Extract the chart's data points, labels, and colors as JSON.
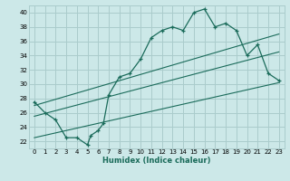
{
  "title": "",
  "xlabel": "Humidex (Indice chaleur)",
  "bg_color": "#cce8e8",
  "grid_color": "#aacccc",
  "line_color": "#1a6b5a",
  "xlim": [
    -0.5,
    23.5
  ],
  "ylim": [
    21.0,
    41.0
  ],
  "yticks": [
    22,
    24,
    26,
    28,
    30,
    32,
    34,
    36,
    38,
    40
  ],
  "xticks": [
    0,
    1,
    2,
    3,
    4,
    5,
    6,
    7,
    8,
    9,
    10,
    11,
    12,
    13,
    14,
    15,
    16,
    17,
    18,
    19,
    20,
    21,
    22,
    23
  ],
  "data_x": [
    0,
    1,
    2,
    3,
    4,
    5,
    5.3,
    6,
    6.5,
    7,
    8,
    9,
    10,
    11,
    12,
    13,
    14,
    15,
    16,
    17,
    18,
    19,
    20,
    21,
    22,
    23
  ],
  "data_y": [
    27.5,
    26.0,
    25.0,
    22.5,
    22.5,
    21.5,
    22.8,
    23.5,
    24.5,
    28.5,
    31.0,
    31.5,
    33.5,
    36.5,
    37.5,
    38.0,
    37.5,
    40.0,
    40.5,
    38.0,
    38.5,
    37.5,
    34.0,
    35.5,
    31.5,
    30.5
  ],
  "line1_x": [
    0,
    23
  ],
  "line1_y": [
    27.0,
    37.0
  ],
  "line2_x": [
    0,
    23
  ],
  "line2_y": [
    25.5,
    34.5
  ],
  "line3_x": [
    0,
    23
  ],
  "line3_y": [
    22.5,
    30.2
  ],
  "xlabel_fontsize": 6.0,
  "tick_fontsize": 5.0
}
